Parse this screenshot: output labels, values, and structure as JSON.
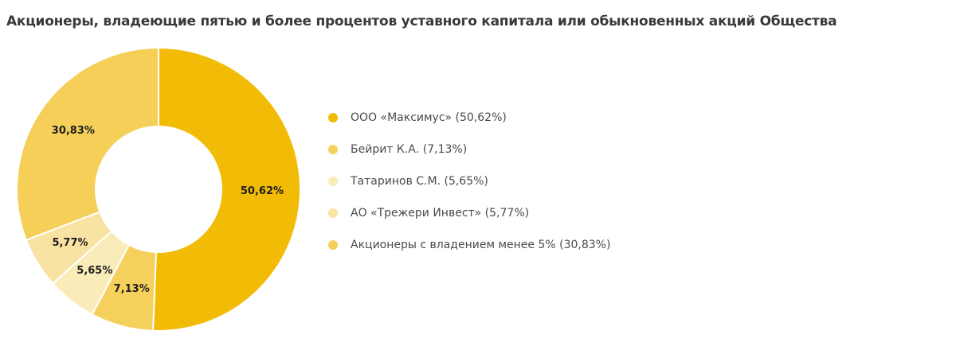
{
  "chart_data": {
    "type": "pie",
    "donut": true,
    "title": "Акционеры, владеющие пятью и более процентов уставного капитала или обыкновенных акций Общества",
    "start": "top",
    "direction": "clockwise",
    "slices": [
      {
        "legend": "ООО «Максимус» (50,62%)",
        "value": 50.62,
        "label": "50,62%",
        "color": "#f2bb05"
      },
      {
        "legend": "Бейрит К.А. (7,13%)",
        "value": 7.13,
        "label": "7,13%",
        "color": "#f5d05c"
      },
      {
        "legend": "Татаринов С.М. (5,65%)",
        "value": 5.65,
        "label": "5,65%",
        "color": "#faecb9"
      },
      {
        "legend": "АО «Трежери Инвест» (5,77%)",
        "value": 5.77,
        "label": "5,77%",
        "color": "#f9e3a2"
      },
      {
        "legend": "Акционеры с владением менее 5% (30,83%)",
        "value": 30.83,
        "label": "30,83%",
        "color": "#f5cf58"
      }
    ],
    "legend_position": "right"
  }
}
